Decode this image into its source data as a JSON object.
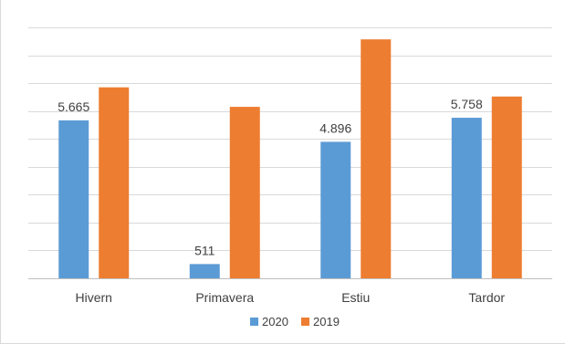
{
  "chart_data": {
    "type": "bar",
    "categories": [
      "Hivern",
      "Primavera",
      "Estiu",
      "Tardor"
    ],
    "series": [
      {
        "name": "2020",
        "color": "#5B9BD5",
        "values": [
          5665,
          511,
          4896,
          5758
        ],
        "labels": [
          "5.665",
          "511",
          "4.896",
          "5.758"
        ]
      },
      {
        "name": "2019",
        "color": "#ED7D31",
        "values": [
          6850,
          6150,
          8570,
          6520
        ],
        "labels": [
          "",
          "",
          "",
          ""
        ]
      }
    ],
    "ylim": [
      0,
      9000
    ],
    "y_grid_step": 1000,
    "grid": true,
    "y_tick_labels_visible": false,
    "legend_position": "bottom",
    "title": "",
    "xlabel": "",
    "ylabel": ""
  }
}
